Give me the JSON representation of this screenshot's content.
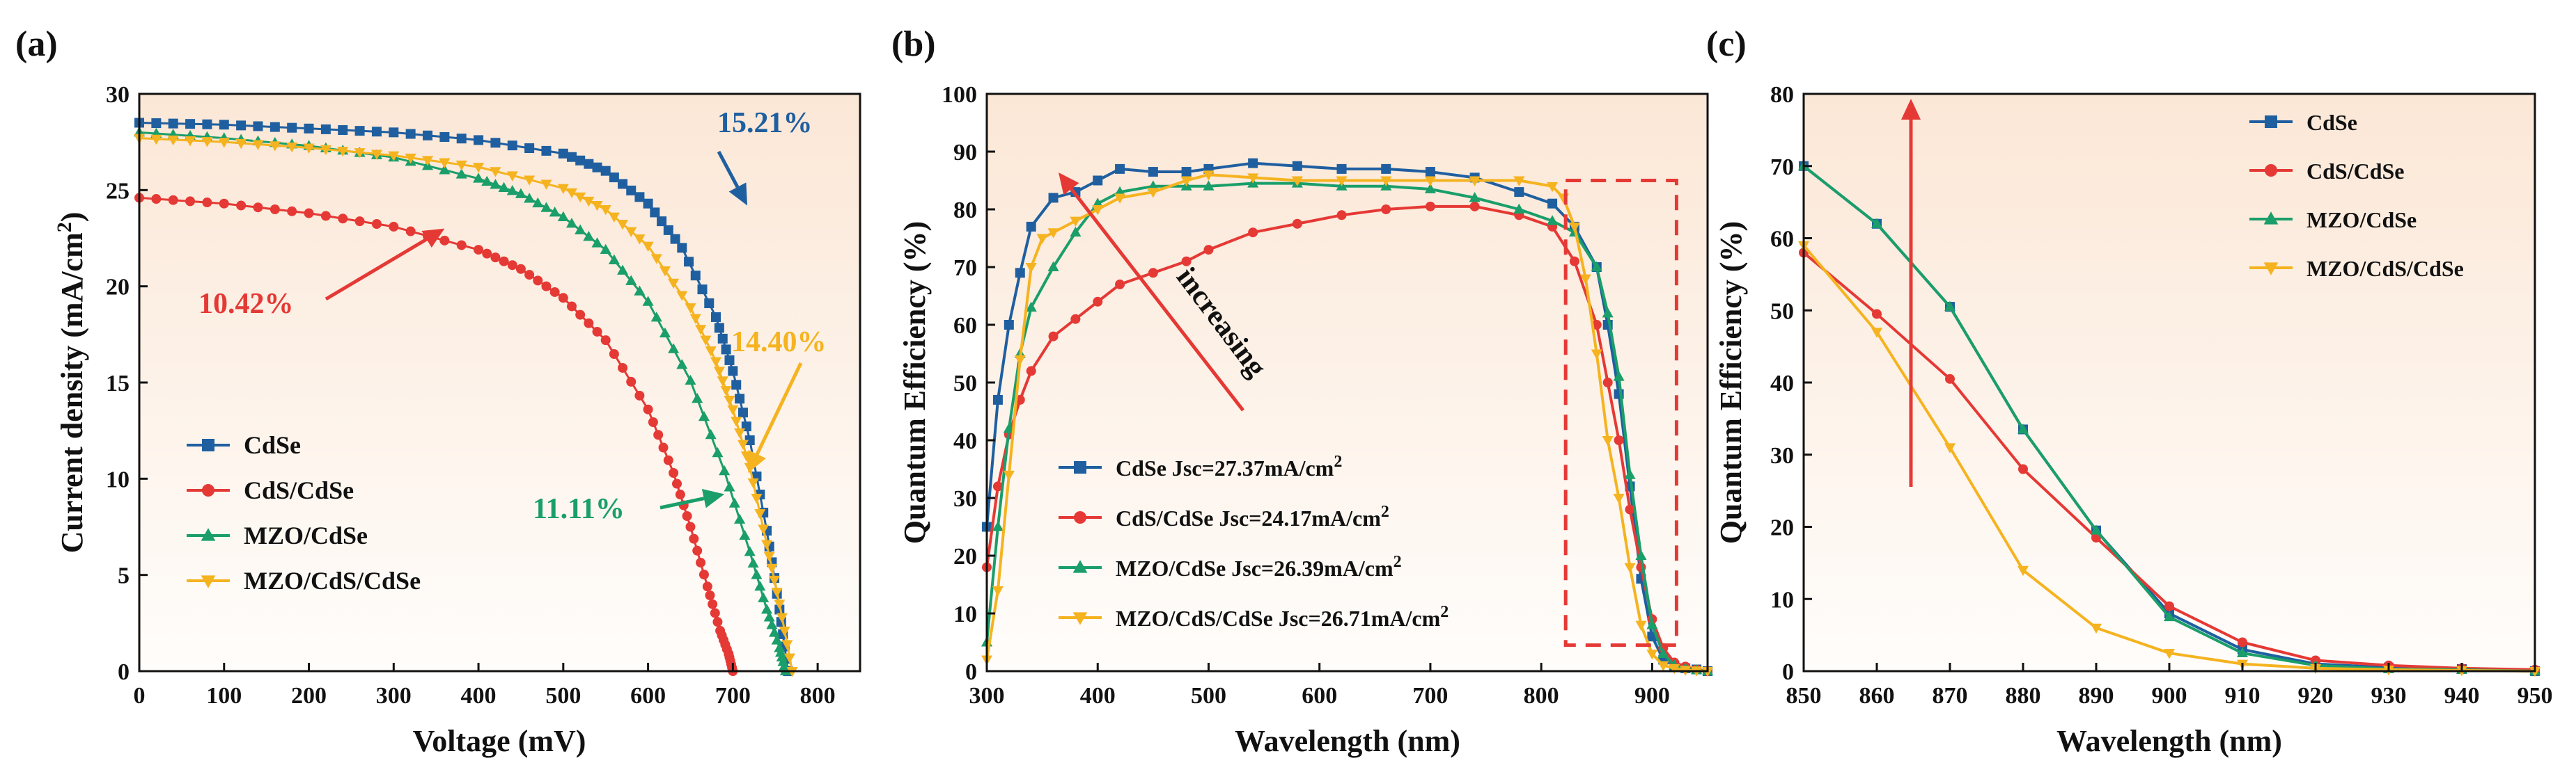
{
  "chart_data": [
    {
      "id": "a",
      "panel_label": "(a)",
      "type": "line",
      "xlabel": "Voltage (mV)",
      "ylabel": "Current density (mA/cm2)",
      "xlim": [
        0,
        850
      ],
      "ylim": [
        0,
        30
      ],
      "xticks": [
        0,
        100,
        200,
        300,
        400,
        500,
        600,
        700,
        800
      ],
      "yticks": [
        0,
        5,
        10,
        15,
        20,
        25,
        30
      ],
      "legend_position": "bottom-left",
      "series": [
        {
          "name": "CdSe",
          "color": "#1f5fa0",
          "marker": "square",
          "x": [
            0,
            100,
            200,
            300,
            400,
            500,
            550,
            600,
            640,
            680,
            700,
            720,
            740,
            755,
            765
          ],
          "y": [
            28.5,
            28.4,
            28.2,
            28.0,
            27.6,
            26.9,
            26.0,
            24.3,
            22.0,
            18.4,
            15.6,
            12.0,
            7.3,
            3.2,
            0
          ]
        },
        {
          "name": "CdS/CdSe",
          "color": "#e53935",
          "marker": "circle",
          "x": [
            0,
            100,
            200,
            300,
            400,
            450,
            500,
            550,
            600,
            630,
            650,
            670,
            685,
            695,
            700
          ],
          "y": [
            24.6,
            24.3,
            23.8,
            23.1,
            21.9,
            20.9,
            19.4,
            17.2,
            13.6,
            10.3,
            7.5,
            4.4,
            2.1,
            0.9,
            0
          ]
        },
        {
          "name": "MZO/CdSe",
          "color": "#1a9e6a",
          "marker": "triangle-up",
          "x": [
            0,
            100,
            200,
            300,
            400,
            450,
            500,
            550,
            600,
            650,
            690,
            720,
            740,
            755,
            762
          ],
          "y": [
            28.0,
            27.7,
            27.3,
            26.7,
            25.6,
            24.8,
            23.6,
            21.9,
            19.2,
            15.1,
            10.4,
            6.2,
            3.2,
            1.2,
            0
          ]
        },
        {
          "name": "MZO/CdS/CdSe",
          "color": "#f5b320",
          "marker": "triangle-down",
          "x": [
            0,
            100,
            200,
            300,
            400,
            500,
            550,
            600,
            650,
            680,
            700,
            720,
            740,
            755,
            770
          ],
          "y": [
            27.7,
            27.5,
            27.2,
            26.8,
            26.2,
            25.1,
            24.0,
            22.1,
            18.9,
            16.1,
            13.6,
            10.6,
            6.6,
            3.5,
            0
          ]
        }
      ],
      "annotations": [
        {
          "text": "15.21%",
          "color": "#1f5fa0",
          "target": [
            717,
            24.2
          ]
        },
        {
          "text": "10.42%",
          "color": "#e53935",
          "target": [
            360,
            23.0
          ]
        },
        {
          "text": "14.40%",
          "color": "#f5b320",
          "target": [
            718,
            10.3
          ]
        },
        {
          "text": "11.11%",
          "color": "#1a9e6a",
          "target": [
            690,
            9.2
          ]
        }
      ]
    },
    {
      "id": "b",
      "panel_label": "(b)",
      "type": "line",
      "xlabel": "Wavelength (nm)",
      "ylabel": "Quantum Efficiency (%)",
      "xlim": [
        300,
        950
      ],
      "ylim": [
        0,
        100
      ],
      "xticks": [
        300,
        400,
        500,
        600,
        700,
        800,
        900
      ],
      "yticks": [
        0,
        10,
        20,
        30,
        40,
        50,
        60,
        70,
        80,
        90,
        100
      ],
      "legend_position": "bottom-left",
      "arrow_label": "increasing",
      "series": [
        {
          "name": "CdSe",
          "legend_label": "CdSe Jsc=27.37mA/cm",
          "color": "#1f5fa0",
          "marker": "square",
          "x": [
            300,
            310,
            320,
            330,
            340,
            360,
            380,
            400,
            420,
            450,
            480,
            500,
            540,
            580,
            620,
            660,
            700,
            740,
            780,
            810,
            830,
            850,
            860,
            870,
            880,
            890,
            900,
            910,
            920,
            930,
            940,
            950
          ],
          "y": [
            25,
            47,
            60,
            69,
            77,
            82,
            83,
            85,
            87,
            86.5,
            86.5,
            87,
            88,
            87.5,
            87,
            87,
            86.5,
            85.5,
            83,
            81,
            77,
            70,
            60,
            48,
            32,
            16,
            6,
            2,
            1,
            0.5,
            0.3,
            0
          ]
        },
        {
          "name": "CdS/CdSe",
          "legend_label": "CdS/CdSe Jsc=24.17mA/cm",
          "color": "#e53935",
          "marker": "circle",
          "x": [
            300,
            310,
            320,
            330,
            340,
            360,
            380,
            400,
            420,
            450,
            480,
            500,
            540,
            580,
            620,
            660,
            700,
            740,
            780,
            810,
            830,
            850,
            860,
            870,
            880,
            890,
            900,
            910,
            920,
            930,
            940,
            950
          ],
          "y": [
            18,
            32,
            41,
            47,
            52,
            58,
            61,
            64,
            67,
            69,
            71,
            73,
            76,
            77.5,
            79,
            80,
            80.5,
            80.5,
            79,
            77,
            71,
            60,
            50,
            40,
            28,
            18,
            9,
            4,
            1.5,
            0.8,
            0.3,
            0
          ]
        },
        {
          "name": "MZO/CdSe",
          "legend_label": "MZO/CdSe Jsc=26.39mA/cm",
          "color": "#1a9e6a",
          "marker": "triangle-up",
          "x": [
            300,
            310,
            320,
            330,
            340,
            360,
            380,
            400,
            420,
            450,
            480,
            500,
            540,
            580,
            620,
            660,
            700,
            740,
            780,
            810,
            830,
            850,
            860,
            870,
            880,
            890,
            900,
            910,
            920,
            930,
            940,
            950
          ],
          "y": [
            5,
            25,
            42,
            55,
            63,
            70,
            76,
            81,
            83,
            84,
            84,
            84,
            84.5,
            84.5,
            84,
            84,
            83.5,
            82,
            80,
            78,
            76,
            70,
            62,
            51,
            34,
            20,
            8,
            3,
            1,
            0.5,
            0.2,
            0
          ]
        },
        {
          "name": "MZO/CdS/CdSe",
          "legend_label": "MZO/CdS/CdSe Jsc=26.71mA/cm",
          "color": "#f5b320",
          "marker": "triangle-down",
          "x": [
            300,
            310,
            320,
            330,
            340,
            350,
            360,
            380,
            400,
            420,
            450,
            480,
            500,
            540,
            580,
            620,
            660,
            700,
            740,
            780,
            810,
            820,
            830,
            840,
            850,
            860,
            870,
            880,
            890,
            900,
            910,
            920,
            930,
            940,
            950
          ],
          "y": [
            2,
            14,
            34,
            54,
            70,
            75,
            76,
            78,
            80,
            82,
            83,
            85,
            86,
            85.5,
            85,
            85,
            85,
            85,
            85,
            85,
            84,
            82,
            77,
            68,
            55,
            40,
            30,
            18,
            8,
            3,
            1,
            0.5,
            0.2,
            0.1,
            0
          ]
        }
      ]
    },
    {
      "id": "c",
      "panel_label": "(c)",
      "type": "line",
      "xlabel": "Wavelength (nm)",
      "ylabel": "Quantum Efficiency (%)",
      "xlim": [
        850,
        950
      ],
      "ylim": [
        0,
        80
      ],
      "xticks": [
        850,
        860,
        870,
        880,
        890,
        900,
        910,
        920,
        930,
        940,
        950
      ],
      "yticks": [
        0,
        10,
        20,
        30,
        40,
        50,
        60,
        70,
        80
      ],
      "legend_position": "top-right",
      "series": [
        {
          "name": "CdSe",
          "color": "#1f5fa0",
          "marker": "square",
          "x": [
            850,
            860,
            870,
            880,
            890,
            900,
            910,
            920,
            930,
            940,
            950
          ],
          "y": [
            70,
            62,
            50.5,
            33.5,
            19.5,
            8,
            3,
            1,
            0.5,
            0.3,
            0
          ]
        },
        {
          "name": "CdS/CdSe",
          "color": "#e53935",
          "marker": "circle",
          "x": [
            850,
            860,
            870,
            880,
            890,
            900,
            910,
            920,
            930,
            940,
            950
          ],
          "y": [
            58,
            49.5,
            40.5,
            28,
            18.5,
            9,
            4,
            1.5,
            0.8,
            0.4,
            0.2
          ]
        },
        {
          "name": "MZO/CdSe",
          "color": "#1a9e6a",
          "marker": "triangle-up",
          "x": [
            850,
            860,
            870,
            880,
            890,
            900,
            910,
            920,
            930,
            940,
            950
          ],
          "y": [
            70,
            62,
            50.5,
            33.5,
            19.5,
            7.5,
            2.5,
            0.8,
            0.3,
            0.2,
            0
          ]
        },
        {
          "name": "MZO/CdS/CdSe",
          "color": "#f5b320",
          "marker": "triangle-down",
          "x": [
            850,
            860,
            870,
            880,
            890,
            900,
            910,
            920,
            930,
            940,
            950
          ],
          "y": [
            59,
            47,
            31,
            14,
            6,
            2.5,
            1,
            0.4,
            0.2,
            0.1,
            0
          ]
        }
      ]
    }
  ]
}
